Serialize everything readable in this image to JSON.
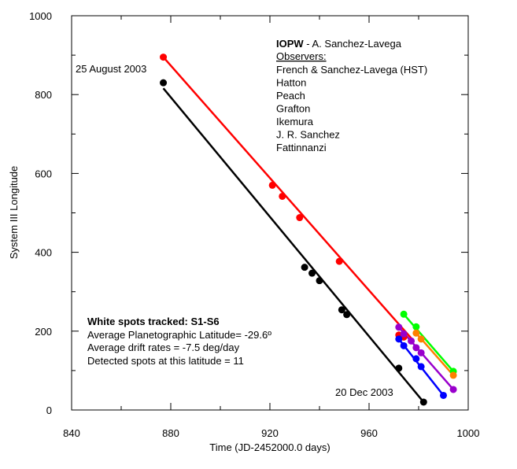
{
  "chart_data": {
    "type": "scatter",
    "xlabel": "Time (JD-2452000.0 days)",
    "ylabel": "System III Longitude",
    "xlim": [
      840,
      1000
    ],
    "ylim": [
      0,
      1000
    ],
    "xticks": [
      840,
      880,
      920,
      960,
      1000
    ],
    "yticks": [
      0,
      200,
      400,
      600,
      800,
      1000
    ],
    "grid": false,
    "series": [
      {
        "color": "#ff0000",
        "points": [
          [
            877,
            895
          ],
          [
            921,
            570
          ],
          [
            925,
            542
          ],
          [
            932,
            488
          ],
          [
            948,
            377
          ],
          [
            972,
            190
          ],
          [
            974,
            185
          ]
        ],
        "fit": [
          [
            877,
            895
          ],
          [
            978,
            175
          ]
        ]
      },
      {
        "color": "#000000",
        "points": [
          [
            877,
            830
          ],
          [
            934,
            362
          ],
          [
            937,
            347
          ],
          [
            940,
            328
          ],
          [
            949,
            254
          ],
          [
            951,
            242
          ],
          [
            972,
            106
          ],
          [
            982,
            20
          ]
        ],
        "fit": [
          [
            877,
            816
          ],
          [
            982,
            20
          ]
        ]
      },
      {
        "color": "#00ff00",
        "points": [
          [
            974,
            243
          ],
          [
            979,
            211
          ],
          [
            994,
            98
          ]
        ],
        "fit": [
          [
            974,
            243
          ],
          [
            994,
            98
          ]
        ]
      },
      {
        "color": "#ff8000",
        "points": [
          [
            979,
            195
          ],
          [
            981,
            180
          ],
          [
            994,
            88
          ]
        ],
        "fit": [
          [
            979,
            195
          ],
          [
            994,
            88
          ]
        ]
      },
      {
        "color": "#9900cc",
        "points": [
          [
            972,
            210
          ],
          [
            974,
            193
          ],
          [
            977,
            175
          ],
          [
            979,
            158
          ],
          [
            981,
            145
          ],
          [
            994,
            52
          ]
        ],
        "fit": [
          [
            972,
            210
          ],
          [
            994,
            52
          ]
        ]
      },
      {
        "color": "#0000ff",
        "points": [
          [
            972,
            180
          ],
          [
            974,
            163
          ],
          [
            979,
            130
          ],
          [
            981,
            110
          ],
          [
            990,
            37
          ]
        ],
        "fit": [
          [
            972,
            180
          ],
          [
            990,
            37
          ]
        ]
      }
    ],
    "annotations": {
      "start_date": "25 August 2003",
      "end_date": "20 Dec 2003",
      "source_title_bold": "IOPW",
      "source_title_rest": " - A. Sanchez-Lavega",
      "observers_heading": "Observers:",
      "observers": [
        "French & Sanchez-Lavega (HST)",
        "Hatton",
        "Peach",
        "Grafton",
        "Ikemura",
        "J. R. Sanchez",
        "Fattinnanzi"
      ],
      "stats": {
        "tracked": "White spots tracked: S1-S6",
        "latitude": "Average Planetographic Latitude= -29.6º",
        "drift": "Average drift rates = -7.5 deg/day",
        "detected": "Detected spots at this latitude = 11"
      }
    }
  }
}
